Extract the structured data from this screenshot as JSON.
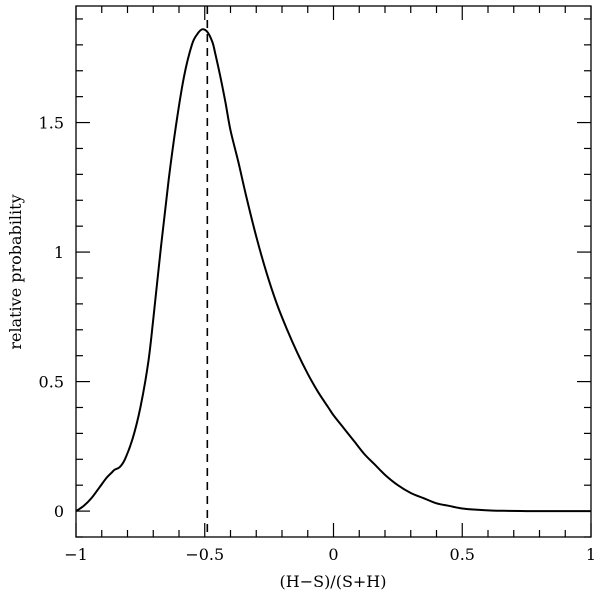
{
  "chart_data": {
    "type": "line",
    "title": "",
    "xlabel": "(H−S)/(S+H)",
    "ylabel": "relative probability",
    "xlim": [
      -1,
      1
    ],
    "ylim": [
      -0.1,
      1.95
    ],
    "grid": false,
    "legend": "none",
    "x_ticks": [
      {
        "value": -1,
        "label": "−1"
      },
      {
        "value": -0.5,
        "label": "−0.5"
      },
      {
        "value": 0,
        "label": "0"
      },
      {
        "value": 0.5,
        "label": "0.5"
      },
      {
        "value": 1,
        "label": "1"
      }
    ],
    "y_ticks": [
      {
        "value": 0,
        "label": "0"
      },
      {
        "value": 0.5,
        "label": "0.5"
      },
      {
        "value": 1,
        "label": "1"
      },
      {
        "value": 1.5,
        "label": "1.5"
      }
    ],
    "reference_line": {
      "x": -0.49,
      "style": "dashed"
    },
    "series": [
      {
        "color": "#000000",
        "x": [
          -1.0,
          -0.97,
          -0.94,
          -0.91,
          -0.88,
          -0.86,
          -0.85,
          -0.83,
          -0.81,
          -0.78,
          -0.75,
          -0.72,
          -0.7,
          -0.67,
          -0.64,
          -0.61,
          -0.58,
          -0.55,
          -0.53,
          -0.51,
          -0.49,
          -0.47,
          -0.46,
          -0.44,
          -0.42,
          -0.4,
          -0.37,
          -0.34,
          -0.3,
          -0.26,
          -0.22,
          -0.18,
          -0.14,
          -0.1,
          -0.06,
          -0.02,
          0.0,
          0.04,
          0.08,
          0.12,
          0.16,
          0.2,
          0.25,
          0.3,
          0.35,
          0.4,
          0.45,
          0.5,
          0.56,
          0.62,
          0.68,
          0.75,
          0.82,
          0.9,
          1.0
        ],
        "y": [
          0.0,
          0.02,
          0.05,
          0.09,
          0.13,
          0.15,
          0.16,
          0.17,
          0.2,
          0.28,
          0.4,
          0.57,
          0.74,
          1.02,
          1.28,
          1.5,
          1.68,
          1.8,
          1.84,
          1.86,
          1.85,
          1.81,
          1.77,
          1.68,
          1.58,
          1.47,
          1.35,
          1.22,
          1.06,
          0.92,
          0.8,
          0.7,
          0.61,
          0.53,
          0.46,
          0.4,
          0.37,
          0.32,
          0.27,
          0.22,
          0.18,
          0.14,
          0.1,
          0.07,
          0.05,
          0.03,
          0.02,
          0.01,
          0.005,
          0.002,
          0.001,
          0.0,
          0.0,
          0.0,
          0.0
        ]
      }
    ]
  }
}
